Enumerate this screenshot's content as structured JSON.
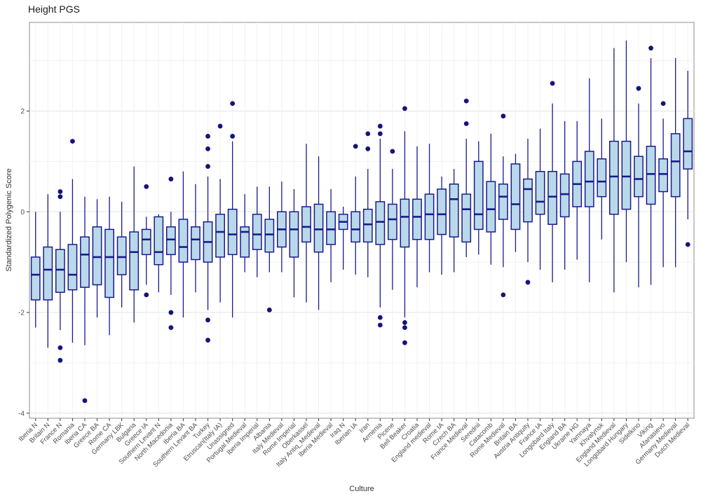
{
  "chart_data": {
    "type": "boxplot",
    "title": "Height PGS",
    "xlabel": "Culture",
    "ylabel": "Standardized Polygenic Score",
    "ylim": [
      -4.1,
      3.76
    ],
    "yticks": [
      -4,
      -2,
      0,
      2
    ],
    "yticks_minor": [
      -3,
      -1,
      1,
      3
    ],
    "grid": true,
    "legend": "none",
    "colors": {
      "box_fill": "#b9d9ea",
      "box_stroke": "#1a1a8c",
      "outlier": "#14147d",
      "grid_major": "#e3e3e3",
      "grid_minor": "#f1f1f1",
      "panel_border": "#8c8c8c",
      "tick_label": "#4d4d4d",
      "panel_bg": "#ffffff"
    },
    "boxes": [
      {
        "label": "Iberia N",
        "whisker_low": -2.3,
        "q1": -1.75,
        "median": -1.25,
        "q3": -0.9,
        "whisker_high": 0.0,
        "outliers": []
      },
      {
        "label": "Britain N",
        "whisker_low": -2.7,
        "q1": -1.75,
        "median": -1.15,
        "q3": -0.7,
        "whisker_high": 0.35,
        "outliers": []
      },
      {
        "label": "France N",
        "whisker_low": -2.35,
        "q1": -1.6,
        "median": -1.15,
        "q3": -0.75,
        "whisker_high": 0.0,
        "outliers": [
          0.4,
          0.3,
          -2.7,
          -2.95
        ]
      },
      {
        "label": "Romania",
        "whisker_low": -2.6,
        "q1": -1.55,
        "median": -1.25,
        "q3": -0.65,
        "whisker_high": 0.65,
        "outliers": [
          1.4
        ]
      },
      {
        "label": "Iberia CA",
        "whisker_low": -2.65,
        "q1": -1.5,
        "median": -0.85,
        "q3": -0.5,
        "whisker_high": 0.3,
        "outliers": [
          -3.75
        ]
      },
      {
        "label": "Greece BA",
        "whisker_low": -2.1,
        "q1": -1.45,
        "median": -0.9,
        "q3": -0.3,
        "whisker_high": 0.25,
        "outliers": []
      },
      {
        "label": "Rome CA",
        "whisker_low": -2.45,
        "q1": -1.7,
        "median": -0.9,
        "q3": -0.35,
        "whisker_high": 0.3,
        "outliers": []
      },
      {
        "label": "Germany LBK",
        "whisker_low": -1.9,
        "q1": -1.25,
        "median": -0.9,
        "q3": -0.5,
        "whisker_high": 0.2,
        "outliers": []
      },
      {
        "label": "Bulgaria",
        "whisker_low": -2.2,
        "q1": -1.55,
        "median": -0.8,
        "q3": -0.4,
        "whisker_high": 0.9,
        "outliers": []
      },
      {
        "label": "Greece IA",
        "whisker_low": -1.45,
        "q1": -0.85,
        "median": -0.55,
        "q3": -0.35,
        "whisker_high": -0.1,
        "outliers": [
          0.5,
          -1.65
        ]
      },
      {
        "label": "Southern Levant N",
        "whisker_low": -1.6,
        "q1": -1.05,
        "median": -0.8,
        "q3": -0.1,
        "whisker_high": -0.05,
        "outliers": []
      },
      {
        "label": "North Macedonia",
        "whisker_low": -1.65,
        "q1": -0.85,
        "median": -0.55,
        "q3": -0.3,
        "whisker_high": 0.0,
        "outliers": [
          0.65,
          -2.0,
          -2.3
        ]
      },
      {
        "label": "Iberia BA",
        "whisker_low": -2.1,
        "q1": -1.0,
        "median": -0.7,
        "q3": -0.15,
        "whisker_high": 0.8,
        "outliers": []
      },
      {
        "label": "Southern Levant BA",
        "whisker_low": -1.6,
        "q1": -0.95,
        "median": -0.55,
        "q3": -0.3,
        "whisker_high": 0.55,
        "outliers": []
      },
      {
        "label": "Turkey",
        "whisker_low": -1.95,
        "q1": -1.0,
        "median": -0.6,
        "q3": -0.2,
        "whisker_high": 0.7,
        "outliers": [
          1.5,
          1.25,
          0.9,
          -2.15,
          -2.55
        ]
      },
      {
        "label": "Etruscan(Italy IA)",
        "whisker_low": -1.8,
        "q1": -0.9,
        "median": -0.4,
        "q3": -0.05,
        "whisker_high": 0.65,
        "outliers": [
          1.7
        ]
      },
      {
        "label": "Unassigned",
        "whisker_low": -2.1,
        "q1": -0.85,
        "median": -0.45,
        "q3": 0.05,
        "whisker_high": 1.4,
        "outliers": [
          2.15,
          1.5
        ]
      },
      {
        "label": "Portugal Medieval",
        "whisker_low": -1.2,
        "q1": -0.9,
        "median": -0.4,
        "q3": -0.3,
        "whisker_high": 0.35,
        "outliers": []
      },
      {
        "label": "Iberia Imperial",
        "whisker_low": -1.3,
        "q1": -0.75,
        "median": -0.45,
        "q3": -0.05,
        "whisker_high": 0.5,
        "outliers": []
      },
      {
        "label": "Albania",
        "whisker_low": -1.2,
        "q1": -0.8,
        "median": -0.45,
        "q3": -0.15,
        "whisker_high": 0.5,
        "outliers": [
          -1.95
        ]
      },
      {
        "label": "Italy Medieval",
        "whisker_low": -1.2,
        "q1": -0.7,
        "median": -0.35,
        "q3": 0.0,
        "whisker_high": 0.6,
        "outliers": []
      },
      {
        "label": "Rome Imperial",
        "whisker_low": -1.7,
        "q1": -0.9,
        "median": -0.35,
        "q3": 0.0,
        "whisker_high": 0.45,
        "outliers": []
      },
      {
        "label": "Oberkassel",
        "whisker_low": -1.8,
        "q1": -0.6,
        "median": -0.3,
        "q3": 0.1,
        "whisker_high": 1.35,
        "outliers": []
      },
      {
        "label": "Italy Antiq_Medieval",
        "whisker_low": -1.95,
        "q1": -0.8,
        "median": -0.35,
        "q3": 0.15,
        "whisker_high": 1.1,
        "outliers": []
      },
      {
        "label": "Iberia Medieval",
        "whisker_low": -1.4,
        "q1": -0.65,
        "median": -0.35,
        "q3": 0.0,
        "whisker_high": 0.45,
        "outliers": []
      },
      {
        "label": "Iraq N",
        "whisker_low": -1.15,
        "q1": -0.35,
        "median": -0.2,
        "q3": -0.05,
        "whisker_high": 0.1,
        "outliers": []
      },
      {
        "label": "Iberian IA",
        "whisker_low": -1.25,
        "q1": -0.6,
        "median": -0.35,
        "q3": 0.0,
        "whisker_high": 0.7,
        "outliers": [
          1.3
        ]
      },
      {
        "label": "Iran",
        "whisker_low": -1.3,
        "q1": -0.6,
        "median": -0.25,
        "q3": 0.05,
        "whisker_high": 0.85,
        "outliers": [
          1.55,
          1.25
        ]
      },
      {
        "label": "Armenia",
        "whisker_low": -1.9,
        "q1": -0.65,
        "median": -0.2,
        "q3": 0.2,
        "whisker_high": 1.45,
        "outliers": [
          1.7,
          1.55,
          -2.1,
          -2.25
        ]
      },
      {
        "label": "Picene",
        "whisker_low": -1.55,
        "q1": -0.55,
        "median": -0.15,
        "q3": 0.15,
        "whisker_high": 0.85,
        "outliers": [
          1.2
        ]
      },
      {
        "label": "Bell Beaker",
        "whisker_low": -2.1,
        "q1": -0.7,
        "median": -0.1,
        "q3": 0.25,
        "whisker_high": 1.6,
        "outliers": [
          2.05,
          -2.2,
          -2.3,
          -2.6
        ]
      },
      {
        "label": "Croatia",
        "whisker_low": -1.5,
        "q1": -0.55,
        "median": -0.1,
        "q3": 0.25,
        "whisker_high": 1.3,
        "outliers": []
      },
      {
        "label": "England medieval",
        "whisker_low": -1.2,
        "q1": -0.55,
        "median": -0.05,
        "q3": 0.35,
        "whisker_high": 1.35,
        "outliers": []
      },
      {
        "label": "Rome IA",
        "whisker_low": -1.25,
        "q1": -0.45,
        "median": -0.05,
        "q3": 0.45,
        "whisker_high": 0.7,
        "outliers": []
      },
      {
        "label": "Czech BA",
        "whisker_low": -1.2,
        "q1": -0.5,
        "median": 0.25,
        "q3": 0.55,
        "whisker_high": 0.85,
        "outliers": []
      },
      {
        "label": "France Medieval",
        "whisker_low": -0.9,
        "q1": -0.6,
        "median": 0.05,
        "q3": 0.35,
        "whisker_high": 1.45,
        "outliers": [
          2.2,
          1.75
        ]
      },
      {
        "label": "Serednii",
        "whisker_low": -0.85,
        "q1": -0.35,
        "median": -0.05,
        "q3": 1.0,
        "whisker_high": 1.4,
        "outliers": []
      },
      {
        "label": "Catacomb",
        "whisker_low": -1.05,
        "q1": -0.4,
        "median": 0.05,
        "q3": 0.6,
        "whisker_high": 1.55,
        "outliers": []
      },
      {
        "label": "Rome Medieval",
        "whisker_low": -1.1,
        "q1": -0.15,
        "median": 0.3,
        "q3": 0.55,
        "whisker_high": 1.1,
        "outliers": [
          1.9,
          -1.65
        ]
      },
      {
        "label": "Britain BA",
        "whisker_low": -0.8,
        "q1": -0.35,
        "median": 0.15,
        "q3": 0.95,
        "whisker_high": 1.15,
        "outliers": []
      },
      {
        "label": "Austria Antiquity",
        "whisker_low": -1.0,
        "q1": -0.2,
        "median": 0.45,
        "q3": 0.65,
        "whisker_high": 1.45,
        "outliers": [
          -1.4
        ]
      },
      {
        "label": "France IA",
        "whisker_low": -1.15,
        "q1": -0.05,
        "median": 0.2,
        "q3": 0.8,
        "whisker_high": 1.65,
        "outliers": []
      },
      {
        "label": "Longobard Italy",
        "whisker_low": -1.4,
        "q1": -0.25,
        "median": 0.3,
        "q3": 0.8,
        "whisker_high": 2.15,
        "outliers": [
          2.55
        ]
      },
      {
        "label": "England BA",
        "whisker_low": -1.15,
        "q1": -0.1,
        "median": 0.35,
        "q3": 0.75,
        "whisker_high": 1.8,
        "outliers": []
      },
      {
        "label": "Ukraine HG",
        "whisker_low": -0.95,
        "q1": 0.1,
        "median": 0.55,
        "q3": 1.0,
        "whisker_high": 1.8,
        "outliers": []
      },
      {
        "label": "Yamnaya",
        "whisker_low": -1.4,
        "q1": 0.1,
        "median": 0.6,
        "q3": 1.2,
        "whisker_high": 2.65,
        "outliers": []
      },
      {
        "label": "Khvalynsk",
        "whisker_low": -0.55,
        "q1": 0.3,
        "median": 0.6,
        "q3": 1.05,
        "whisker_high": 1.85,
        "outliers": []
      },
      {
        "label": "England Medieval",
        "whisker_low": -1.6,
        "q1": -0.05,
        "median": 0.7,
        "q3": 1.4,
        "whisker_high": 3.25,
        "outliers": []
      },
      {
        "label": "Longobard Hungary",
        "whisker_low": -1.0,
        "q1": 0.05,
        "median": 0.7,
        "q3": 1.4,
        "whisker_high": 3.4,
        "outliers": []
      },
      {
        "label": "Sidelkino",
        "whisker_low": -1.5,
        "q1": 0.3,
        "median": 0.65,
        "q3": 1.1,
        "whisker_high": 2.15,
        "outliers": [
          2.45
        ]
      },
      {
        "label": "Viking",
        "whisker_low": -1.45,
        "q1": 0.15,
        "median": 0.75,
        "q3": 1.3,
        "whisker_high": 3.05,
        "outliers": [
          3.25
        ]
      },
      {
        "label": "Afanasievo",
        "whisker_low": -1.1,
        "q1": 0.4,
        "median": 0.75,
        "q3": 1.05,
        "whisker_high": 1.85,
        "outliers": [
          2.15
        ]
      },
      {
        "label": "Germany Medieval",
        "whisker_low": -1.1,
        "q1": 0.3,
        "median": 1.0,
        "q3": 1.55,
        "whisker_high": 3.05,
        "outliers": []
      },
      {
        "label": "Dutch Medieval",
        "whisker_low": -0.15,
        "q1": 0.85,
        "median": 1.2,
        "q3": 1.85,
        "whisker_high": 2.8,
        "outliers": [
          -0.65
        ]
      }
    ]
  }
}
